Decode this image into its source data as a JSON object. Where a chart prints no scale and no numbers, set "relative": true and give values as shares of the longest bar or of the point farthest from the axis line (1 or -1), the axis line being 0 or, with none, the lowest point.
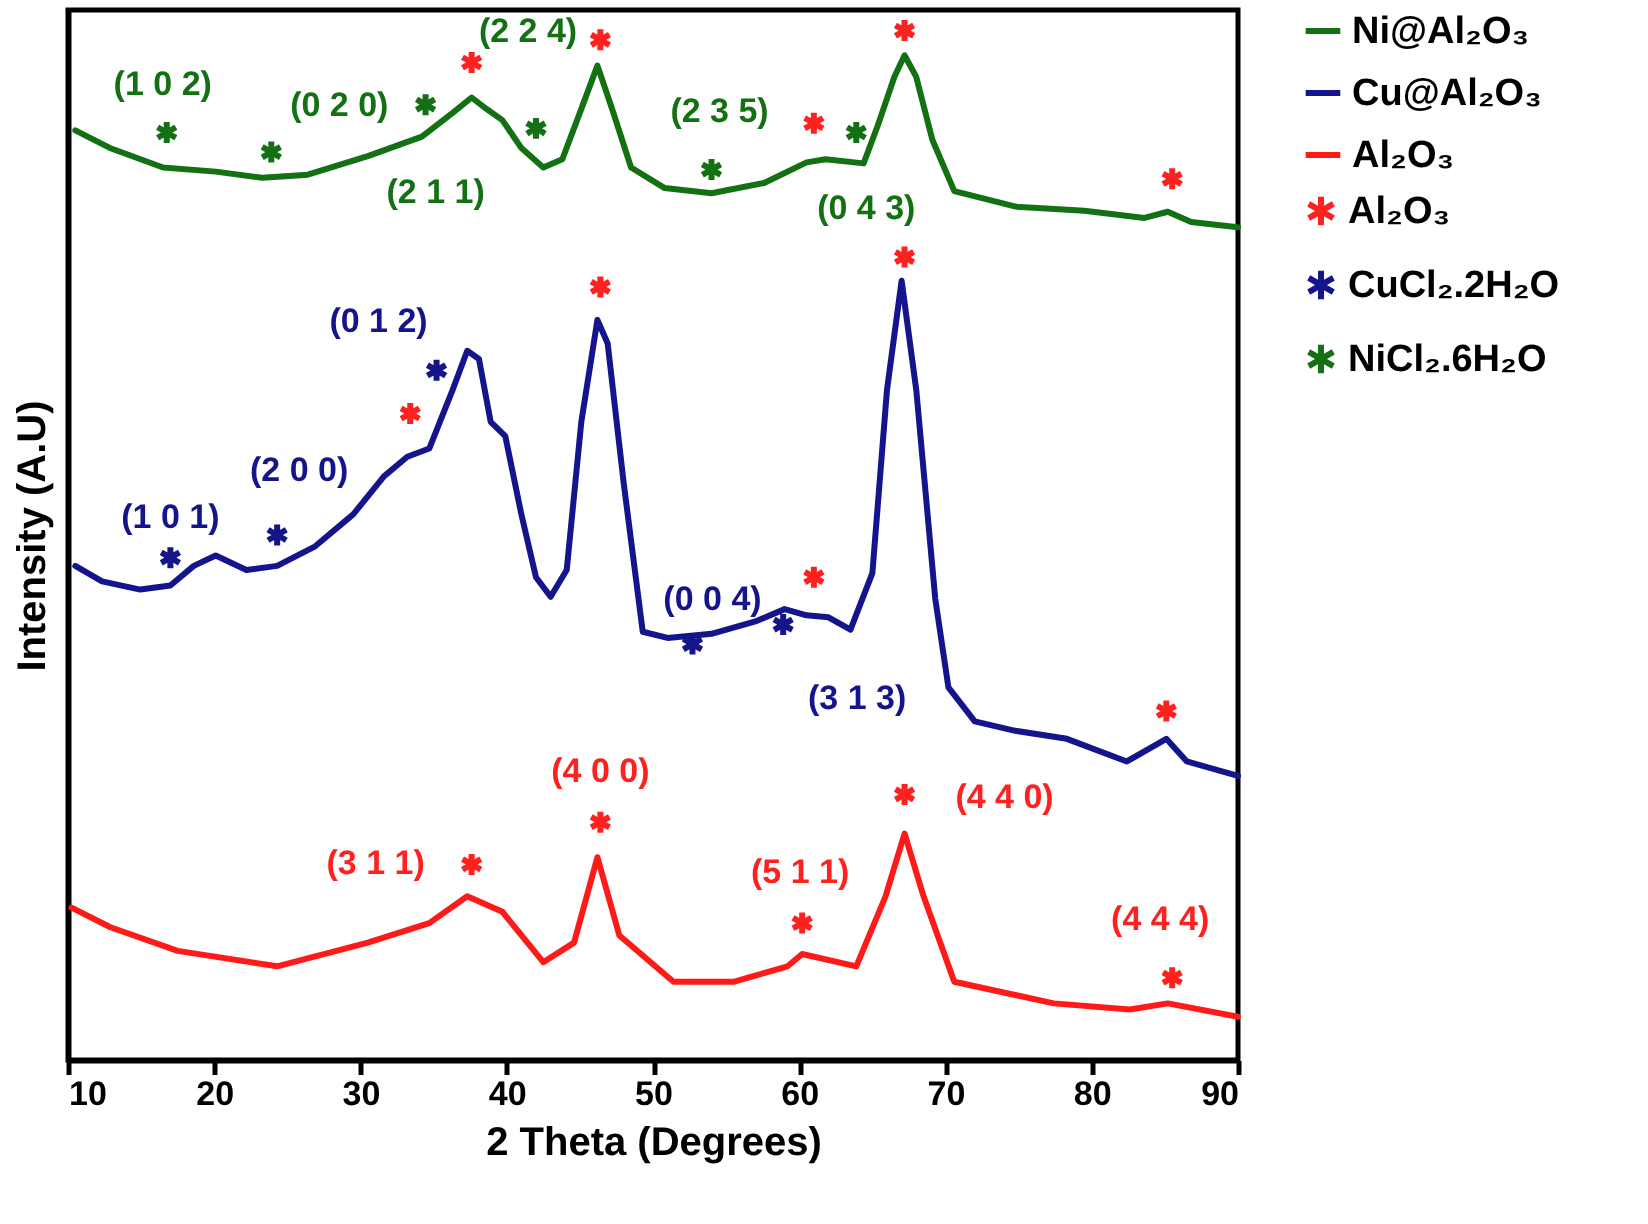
{
  "chart_data": {
    "type": "line",
    "relative": true,
    "xlabel": "2 Theta (Degrees)",
    "ylabel": "Intensity (A.U)",
    "xlim": [
      10,
      90
    ],
    "xticks": [
      10,
      20,
      30,
      40,
      50,
      60,
      70,
      80,
      90
    ],
    "legend": "right",
    "series": [
      {
        "name": "Ni@Al₂O₃",
        "color": "#137013",
        "x": [
          10.5,
          12.86,
          16.5,
          20.1,
          23.3,
          26.4,
          30.5,
          34.2,
          36.3,
          37.6,
          38.6,
          39.7,
          41.0,
          42.5,
          43.8,
          45.1,
          46.2,
          47.2,
          48.5,
          50.8,
          54.0,
          57.6,
          60.5,
          61.8,
          64.4,
          65.4,
          66.5,
          67.2,
          68.0,
          69.1,
          70.6,
          74.8,
          79.5,
          83.6,
          85.2,
          86.8,
          90
        ],
        "values": [
          0.903,
          0.886,
          0.867,
          0.863,
          0.857,
          0.86,
          0.878,
          0.897,
          0.92,
          0.935,
          0.924,
          0.913,
          0.886,
          0.867,
          0.875,
          0.924,
          0.966,
          0.924,
          0.867,
          0.847,
          0.842,
          0.852,
          0.872,
          0.875,
          0.871,
          0.909,
          0.955,
          0.976,
          0.955,
          0.894,
          0.844,
          0.829,
          0.825,
          0.818,
          0.824,
          0.814,
          0.809
        ]
      },
      {
        "name": "Cu@Al₂O₃",
        "color": "#14148c",
        "x": [
          10.5,
          12.33,
          14.94,
          17.0,
          18.6,
          20.1,
          22.2,
          24.3,
          26.9,
          29.5,
          31.6,
          33.2,
          34.7,
          36.3,
          37.3,
          38.1,
          38.9,
          39.9,
          41.0,
          42.0,
          43.0,
          44.1,
          45.1,
          46.2,
          46.9,
          48.0,
          49.3,
          51,
          54,
          57,
          59,
          60.5,
          62,
          63.5,
          65,
          66,
          67,
          68,
          69.3,
          70.2,
          72.0,
          74.7,
          78.3,
          82.4,
          85.1,
          86.5,
          90
        ],
        "values": [
          0.48,
          0.465,
          0.457,
          0.461,
          0.48,
          0.49,
          0.476,
          0.48,
          0.499,
          0.53,
          0.567,
          0.586,
          0.594,
          0.651,
          0.689,
          0.681,
          0.62,
          0.606,
          0.53,
          0.469,
          0.45,
          0.476,
          0.62,
          0.719,
          0.696,
          0.56,
          0.416,
          0.41,
          0.414,
          0.426,
          0.438,
          0.432,
          0.43,
          0.418,
          0.473,
          0.651,
          0.757,
          0.651,
          0.448,
          0.362,
          0.329,
          0.32,
          0.312,
          0.29,
          0.312,
          0.29,
          0.276
        ]
      },
      {
        "name": "Al₂O₃",
        "color": "#ff1a1a",
        "x": [
          10.24,
          12.9,
          17.5,
          24.3,
          30.5,
          34.7,
          37.3,
          39.7,
          42.5,
          44.6,
          46.2,
          47.7,
          51.4,
          55.5,
          59.2,
          60.2,
          63.9,
          65.9,
          67.2,
          68.5,
          70.6,
          77.4,
          82.6,
          85.2,
          90
        ],
        "values": [
          0.148,
          0.129,
          0.106,
          0.091,
          0.114,
          0.133,
          0.159,
          0.144,
          0.095,
          0.114,
          0.197,
          0.121,
          0.076,
          0.076,
          0.091,
          0.103,
          0.091,
          0.159,
          0.22,
          0.159,
          0.076,
          0.055,
          0.049,
          0.055,
          0.042
        ]
      },
      {
        "name": "Al₂O₃",
        "type": "scatter",
        "marker": "cross",
        "color": "#ff2020",
        "x": [
          37.6,
          46.4,
          67.2,
          61.0,
          85.5,
          33.4,
          46.4,
          61.0,
          67.2,
          85.1,
          37.6,
          46.4,
          60.2,
          67.2,
          85.5
        ],
        "values": [
          0.969,
          0.991,
          1.0,
          0.91,
          0.856,
          0.628,
          0.751,
          0.469,
          0.78,
          0.339,
          0.19,
          0.231,
          0.133,
          0.258,
          0.08
        ]
      },
      {
        "name": "CuCl₂.2H₂O",
        "type": "scatter",
        "marker": "cross",
        "color": "#14148c",
        "x": [
          17.0,
          24.3,
          35.2,
          52.7,
          58.9
        ],
        "values": [
          0.488,
          0.51,
          0.67,
          0.404,
          0.423
        ]
      },
      {
        "name": "NiCl₂.6H₂O",
        "type": "scatter",
        "marker": "cross",
        "color": "#137013",
        "x": [
          16.75,
          23.9,
          34.45,
          42.0,
          54.0,
          63.9
        ],
        "values": [
          0.901,
          0.882,
          0.928,
          0.905,
          0.865,
          0.901
        ]
      }
    ],
    "annotations": [
      {
        "text": "(1 0 2)",
        "x": 16.75,
        "y": 0.901
      },
      {
        "text": "(0 2 0)",
        "x": 23.9,
        "y": 0.882
      },
      {
        "text": "(2 1 1)",
        "x": 34.45,
        "y": 0.928
      },
      {
        "text": "(2 2 4)",
        "x": 42.0,
        "y": 0.905
      },
      {
        "text": "(2 3 5)",
        "x": 54.0,
        "y": 0.865
      },
      {
        "text": "(0 4 3)",
        "x": 63.9,
        "y": 0.901
      },
      {
        "text": "(0 1 2)",
        "x": 35.2,
        "y": 0.67
      },
      {
        "text": "(2 0 0)",
        "x": 24.3,
        "y": 0.51
      },
      {
        "text": "(1 0 1)",
        "x": 17.0,
        "y": 0.488
      },
      {
        "text": "(0 0 4)",
        "x": 52.7,
        "y": 0.404
      },
      {
        "text": "(3 1 3)",
        "x": 58.9,
        "y": 0.423
      },
      {
        "text": "(4 0 0)",
        "x": 46.4,
        "y": 0.231
      },
      {
        "text": "(3 1 1)",
        "x": 37.6,
        "y": 0.19
      },
      {
        "text": "(5 1 1)",
        "x": 60.2,
        "y": 0.133
      },
      {
        "text": "(4 4 0)",
        "x": 67.2,
        "y": 0.258
      },
      {
        "text": "(4 4 4)",
        "x": 85.5,
        "y": 0.08
      }
    ]
  }
}
